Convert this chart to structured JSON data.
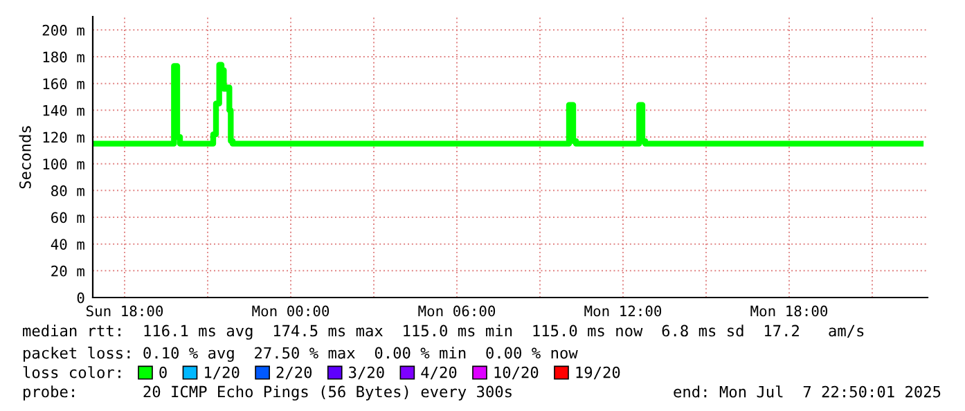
{
  "chart_data": {
    "type": "step",
    "ylabel": "Seconds",
    "xlim": [
      "2025-07-06T16:51",
      "2025-07-07T23:00"
    ],
    "xticks": [
      {
        "value": "2025-07-06T18:00",
        "label": "Sun 18:00"
      },
      {
        "value": "2025-07-06T21:00",
        "label": null
      },
      {
        "value": "2025-07-07T00:00",
        "label": "Mon 00:00"
      },
      {
        "value": "2025-07-07T03:00",
        "label": null
      },
      {
        "value": "2025-07-07T06:00",
        "label": "Mon 06:00"
      },
      {
        "value": "2025-07-07T09:00",
        "label": null
      },
      {
        "value": "2025-07-07T12:00",
        "label": "Mon 12:00"
      },
      {
        "value": "2025-07-07T15:00",
        "label": null
      },
      {
        "value": "2025-07-07T18:00",
        "label": "Mon 18:00"
      },
      {
        "value": "2025-07-07T21:00",
        "label": null
      }
    ],
    "ylim": [
      0,
      210
    ],
    "yticks": [
      0,
      {
        "value": 20,
        "label": "20 m"
      },
      {
        "value": 40,
        "label": "40 m"
      },
      {
        "value": 60,
        "label": "60 m"
      },
      {
        "value": 80,
        "label": "80 m"
      },
      {
        "value": 100,
        "label": "100 m"
      },
      {
        "value": 120,
        "label": "120 m"
      },
      {
        "value": 140,
        "label": "140 m"
      },
      {
        "value": 160,
        "label": "160 m"
      },
      {
        "value": 180,
        "label": "180 m"
      },
      {
        "value": 200,
        "label": "200 m"
      }
    ],
    "grid": true,
    "legend": "bottom",
    "legend_title": "loss color:",
    "series": [
      {
        "name": "0",
        "color": "#00ff00",
        "x": [
          "2025-07-06T16:51",
          "2025-07-06T19:42",
          "2025-07-06T19:47",
          "2025-07-06T19:54",
          "2025-07-06T20:00",
          "2025-07-06T21:12",
          "2025-07-06T21:18",
          "2025-07-06T21:25",
          "2025-07-06T21:30",
          "2025-07-06T21:35",
          "2025-07-06T21:42",
          "2025-07-06T21:47",
          "2025-07-06T21:50",
          "2025-07-06T21:54",
          "2025-07-07T10:03",
          "2025-07-07T10:12",
          "2025-07-07T10:18",
          "2025-07-07T12:35",
          "2025-07-07T12:42",
          "2025-07-07T12:48",
          "2025-07-07T22:45"
        ],
        "values": [
          115,
          115,
          173,
          120,
          115,
          122,
          145,
          174,
          170,
          156,
          157,
          140,
          117,
          115,
          144,
          117,
          115,
          144,
          117,
          115,
          115
        ]
      },
      {
        "name": "1/20",
        "color": "#00b8ff",
        "values": [
          null
        ]
      },
      {
        "name": "2/20",
        "color": "#0059ff",
        "values": [
          null
        ]
      },
      {
        "name": "3/20",
        "color": "#5e00ff",
        "values": [
          null
        ]
      },
      {
        "name": "4/20",
        "color": "#7e00ff",
        "values": [
          null
        ]
      },
      {
        "name": "10/20",
        "color": "#dd00ff",
        "values": [
          null
        ]
      },
      {
        "name": "19/20",
        "color": "#ff0000",
        "values": [
          null
        ]
      }
    ],
    "annotations": [
      "median rtt:  116.1 ms avg  174.5 ms max  115.0 ms min  115.0 ms now  6.8 ms sd  17.2   am/s",
      "packet loss: 0.10 % avg  27.50 % max  0.00 % min  0.00 % now",
      "probe:       20 ICMP Echo Pings (56 Bytes) every 300s",
      "end: Mon Jul  7 22:50:01 2025"
    ]
  }
}
